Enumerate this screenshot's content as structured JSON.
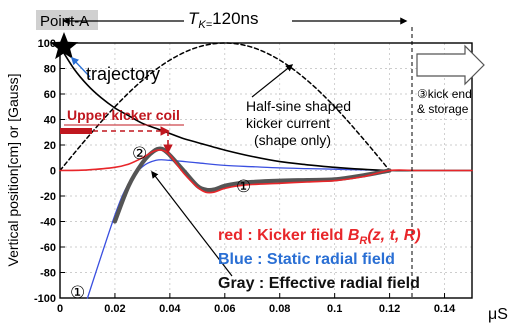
{
  "chart_data": {
    "type": "line",
    "title": "",
    "point_label": "Point-A",
    "period_label_symbol": "T",
    "period_label_sub": "K=",
    "period_label_value": "120ns",
    "xlabel": "μS",
    "ylabel": "Vertical position[cm] or [Gauss]",
    "xlim": [
      0,
      0.15
    ],
    "ylim": [
      -100,
      100
    ],
    "x_ticks": [
      0,
      0.02,
      0.04,
      0.06,
      0.08,
      0.1,
      0.12,
      0.14
    ],
    "x_tick_labels": [
      "0",
      "0.02",
      "0.04",
      "0.06",
      "0.08",
      "0.1",
      "0.12",
      "0.14"
    ],
    "y_ticks": [
      -100,
      -80,
      -60,
      -40,
      -20,
      0,
      20,
      40,
      60,
      80,
      100
    ],
    "y_tick_labels": [
      "-100",
      "-80",
      "-60",
      "-40",
      "-20",
      "0",
      "20",
      "40",
      "60",
      "80",
      "100"
    ],
    "grid": true,
    "colors": {
      "trajectory": "#000000",
      "kicker_current": "#000000",
      "kicker_field": "#e8262a",
      "static_field": "#3a4fe0",
      "effective_field": "#555555",
      "coil_arrow": "#c0171f",
      "legend_red": "#e8262a",
      "legend_blue": "#2a6fd4",
      "legend_gray": "#111111",
      "label_gray": "#d0d0d0"
    },
    "series": [
      {
        "key": "trajectory",
        "x": [
          0,
          0.005,
          0.01,
          0.015,
          0.02,
          0.025,
          0.03,
          0.035,
          0.04,
          0.045,
          0.05,
          0.06,
          0.07,
          0.08,
          0.09,
          0.1,
          0.11,
          0.12,
          0.13,
          0.14,
          0.15
        ],
        "y": [
          97,
          80,
          67,
          57,
          49,
          43,
          37,
          33,
          29,
          25,
          22,
          16,
          11,
          7,
          4.5,
          2.5,
          1,
          0,
          0,
          0,
          0
        ]
      },
      {
        "key": "kicker_current",
        "x": [
          0,
          0.01,
          0.02,
          0.03,
          0.04,
          0.05,
          0.06,
          0.07,
          0.08,
          0.09,
          0.1,
          0.11,
          0.12
        ],
        "y": [
          0,
          25.9,
          50,
          70.7,
          86.6,
          96.6,
          100,
          96.6,
          86.6,
          70.7,
          50,
          25.9,
          0
        ]
      },
      {
        "key": "kicker_field",
        "x": [
          0,
          0.01,
          0.02,
          0.025,
          0.03,
          0.034,
          0.037,
          0.04,
          0.045,
          0.05,
          0.053,
          0.056,
          0.06,
          0.065,
          0.07,
          0.08,
          0.09,
          0.1,
          0.11,
          0.12,
          0.13,
          0.14,
          0.15
        ],
        "y": [
          0,
          0.5,
          2.5,
          5,
          10,
          15,
          16,
          12,
          -2,
          -13,
          -17,
          -17,
          -14,
          -12,
          -11,
          -10,
          -9,
          -8,
          -5,
          0,
          0,
          0,
          0
        ]
      },
      {
        "key": "static_field",
        "x": [
          0.01,
          0.02,
          0.025,
          0.03,
          0.035,
          0.04,
          0.05,
          0.06,
          0.07,
          0.08,
          0.09,
          0.1,
          0.11,
          0.12
        ],
        "y": [
          -100,
          -35,
          -10,
          3,
          8,
          8,
          6,
          4,
          3,
          2,
          1.5,
          1,
          0.5,
          0
        ]
      },
      {
        "key": "effective_field",
        "x": [
          0.02,
          0.025,
          0.03,
          0.034,
          0.037,
          0.04,
          0.045,
          0.05,
          0.053,
          0.056,
          0.06,
          0.065,
          0.07,
          0.08,
          0.09,
          0.1,
          0.11,
          0.12
        ],
        "y": [
          -40,
          -12,
          6,
          15,
          17,
          12,
          0,
          -12,
          -15,
          -15,
          -12,
          -10,
          -9,
          -8,
          -7.5,
          -7,
          -4,
          0
        ]
      }
    ],
    "annotations": {
      "trajectory": "trajectory",
      "upper_coil": "Upper kicker coil",
      "half_sine": "Half-sine shaped kicker current (shape only)",
      "kick_end": "③kick end & storage",
      "circle_one": "①",
      "circle_two": "②"
    },
    "legend": {
      "red_prefix": "red : Kicker field ",
      "red_math": "B",
      "red_sub": "R",
      "red_suffix": "(z, t, R)",
      "blue": "Blue : Static radial field",
      "gray": "Gray : Effective radial field"
    }
  }
}
